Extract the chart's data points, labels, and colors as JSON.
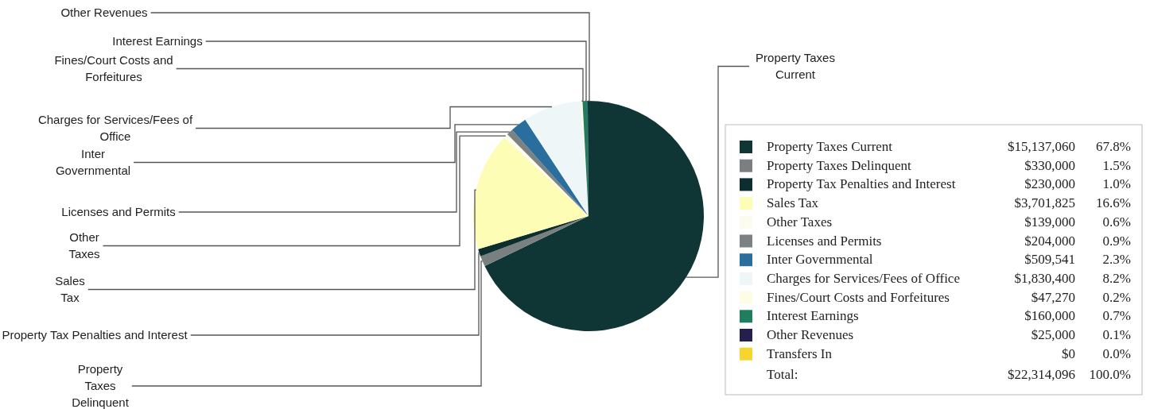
{
  "chart_data": {
    "type": "pie",
    "categories": [
      "Property Taxes Current",
      "Property Taxes Delinquent",
      "Property Tax Penalties and Interest",
      "Sales Tax",
      "Other Taxes",
      "Licenses and Permits",
      "Inter Governmental",
      "Charges for Services/Fees of Office",
      "Fines/Court Costs and Forfeitures",
      "Interest Earnings",
      "Other Revenues",
      "Transfers In"
    ],
    "values": [
      15137060,
      330000,
      230000,
      3701825,
      139000,
      204000,
      509541,
      1830400,
      47270,
      160000,
      25000,
      0
    ],
    "value_labels": [
      "$15,137,060",
      "$330,000",
      "$230,000",
      "$3,701,825",
      "$139,000",
      "$204,000",
      "$509,541",
      "$1,830,400",
      "$47,270",
      "$160,000",
      "$25,000",
      "$0"
    ],
    "colors": [
      "#0f3535",
      "#7a8080",
      "#0c2e2f",
      "#fdfdb5",
      "#fcfcee",
      "#7c8282",
      "#2a6e9e",
      "#eef6f8",
      "#fefde4",
      "#1e7e5e",
      "#22204f",
      "#f7d531"
    ],
    "annotations": [
      "67.8%",
      "1.5%",
      "1.0%",
      "16.6%",
      "0.6%",
      "0.9%",
      "2.3%",
      "8.2%",
      "0.2%",
      "0.7%",
      "0.1%",
      "0.0%",
      "Total:",
      "$22,314,096",
      "100.0%"
    ],
    "legend": "right"
  }
}
